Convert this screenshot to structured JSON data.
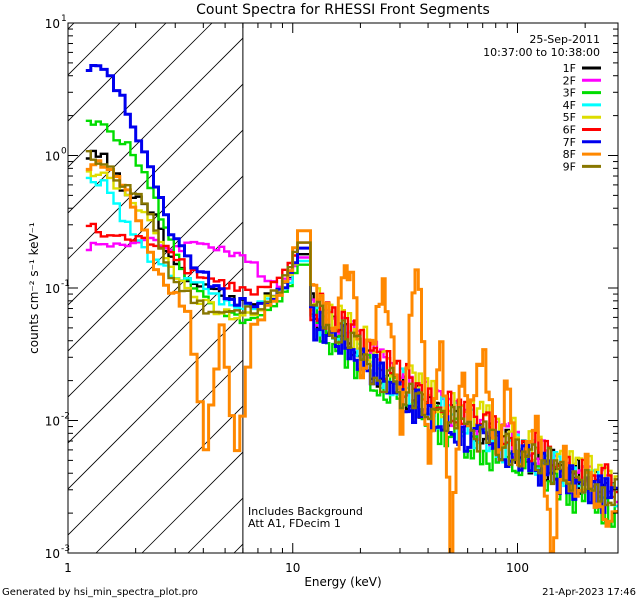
{
  "chart_data": {
    "type": "line",
    "title": "Count Spectra for RHESSI Front Segments",
    "xlabel": "Energy (keV)",
    "ylabel": "counts cm⁻² s⁻¹ keV⁻¹",
    "xscale": "log",
    "yscale": "log",
    "xlim": [
      1,
      280
    ],
    "ylim": [
      0.001,
      10
    ],
    "x_ticks": [
      {
        "value": 1,
        "label": "1"
      },
      {
        "value": 10,
        "label": "10"
      },
      {
        "value": 100,
        "label": "100"
      }
    ],
    "y_ticks": [
      {
        "value": 10,
        "base": "10",
        "exp": "1"
      },
      {
        "value": 1,
        "base": "10",
        "exp": "0"
      },
      {
        "value": 0.1,
        "base": "10",
        "exp": "-1"
      },
      {
        "value": 0.01,
        "base": "10",
        "exp": "-2"
      },
      {
        "value": 0.001,
        "base": "10",
        "exp": "-3"
      }
    ],
    "hatch_region": {
      "x_from": 1,
      "x_to": 6
    },
    "legend": {
      "position": "top-right",
      "date": "25-Sep-2011",
      "time_range": "10:37:00 to 10:38:00"
    },
    "annotations": [
      "Includes Background",
      "Att A1, FDecim 1"
    ],
    "series": [
      {
        "name": "1F",
        "color": "#000000",
        "low": [
          [
            1.2,
            1.0
          ],
          [
            1.4,
            1.0
          ],
          [
            1.7,
            0.55
          ],
          [
            2.0,
            0.45
          ],
          [
            2.4,
            0.35
          ],
          [
            2.8,
            0.16
          ],
          [
            3.3,
            0.12
          ],
          [
            4.0,
            0.1
          ],
          [
            4.7,
            0.09
          ],
          [
            5.5,
            0.08
          ],
          [
            6.5,
            0.075
          ],
          [
            7.5,
            0.09
          ],
          [
            8.5,
            0.1
          ],
          [
            9.5,
            0.13
          ],
          [
            10.5,
            0.18
          ]
        ],
        "high": [
          [
            12,
            0.07
          ],
          [
            15,
            0.05
          ],
          [
            20,
            0.03
          ],
          [
            30,
            0.018
          ],
          [
            40,
            0.012
          ],
          [
            60,
            0.009
          ],
          [
            80,
            0.007
          ],
          [
            120,
            0.005
          ],
          [
            160,
            0.004
          ],
          [
            200,
            0.0035
          ],
          [
            280,
            0.0028
          ]
        ]
      },
      {
        "name": "2F",
        "color": "#ff00ff",
        "low": [
          [
            1.2,
            0.21
          ],
          [
            1.4,
            0.21
          ],
          [
            1.7,
            0.22
          ],
          [
            2.0,
            0.22
          ],
          [
            2.4,
            0.22
          ],
          [
            2.8,
            0.2
          ],
          [
            3.3,
            0.21
          ],
          [
            4.0,
            0.22
          ],
          [
            4.7,
            0.2
          ],
          [
            5.5,
            0.17
          ],
          [
            6.5,
            0.15
          ],
          [
            7.5,
            0.12
          ],
          [
            8.5,
            0.11
          ],
          [
            9.5,
            0.12
          ],
          [
            10.5,
            0.17
          ]
        ],
        "high": [
          [
            12,
            0.07
          ],
          [
            15,
            0.055
          ],
          [
            20,
            0.035
          ],
          [
            30,
            0.02
          ],
          [
            40,
            0.014
          ],
          [
            60,
            0.01
          ],
          [
            80,
            0.008
          ],
          [
            120,
            0.006
          ],
          [
            160,
            0.0045
          ],
          [
            200,
            0.004
          ],
          [
            280,
            0.003
          ]
        ]
      },
      {
        "name": "3F",
        "color": "#00dd00",
        "low": [
          [
            1.2,
            1.7
          ],
          [
            1.4,
            1.7
          ],
          [
            1.7,
            1.3
          ],
          [
            2.0,
            0.9
          ],
          [
            2.4,
            0.45
          ],
          [
            2.8,
            0.22
          ],
          [
            3.3,
            0.12
          ],
          [
            4.0,
            0.08
          ],
          [
            4.7,
            0.06
          ],
          [
            5.5,
            0.06
          ],
          [
            6.5,
            0.055
          ],
          [
            7.5,
            0.065
          ],
          [
            8.5,
            0.075
          ],
          [
            9.5,
            0.1
          ],
          [
            10.5,
            0.15
          ]
        ],
        "high": [
          [
            12,
            0.06
          ],
          [
            15,
            0.04
          ],
          [
            20,
            0.025
          ],
          [
            30,
            0.015
          ],
          [
            40,
            0.01
          ],
          [
            60,
            0.007
          ],
          [
            80,
            0.005
          ],
          [
            120,
            0.004
          ],
          [
            160,
            0.003
          ],
          [
            200,
            0.0025
          ],
          [
            280,
            0.002
          ]
        ]
      },
      {
        "name": "4F",
        "color": "#00ffff",
        "low": [
          [
            1.2,
            0.65
          ],
          [
            1.4,
            0.65
          ],
          [
            1.7,
            0.35
          ],
          [
            2.0,
            0.22
          ],
          [
            2.4,
            0.15
          ],
          [
            2.8,
            0.13
          ],
          [
            3.3,
            0.11
          ],
          [
            4.0,
            0.1
          ],
          [
            4.7,
            0.08
          ],
          [
            5.5,
            0.07
          ],
          [
            6.5,
            0.075
          ],
          [
            7.5,
            0.085
          ],
          [
            8.5,
            0.09
          ],
          [
            9.5,
            0.12
          ],
          [
            10.5,
            0.16
          ]
        ],
        "high": [
          [
            12,
            0.065
          ],
          [
            15,
            0.05
          ],
          [
            20,
            0.03
          ],
          [
            30,
            0.018
          ],
          [
            40,
            0.012
          ],
          [
            60,
            0.009
          ],
          [
            80,
            0.007
          ],
          [
            120,
            0.005
          ],
          [
            160,
            0.004
          ],
          [
            200,
            0.0033
          ],
          [
            280,
            0.0027
          ]
        ]
      },
      {
        "name": "5F",
        "color": "#dddd00",
        "low": [
          [
            1.2,
            0.75
          ],
          [
            1.4,
            0.75
          ],
          [
            1.7,
            0.55
          ],
          [
            2.0,
            0.4
          ],
          [
            2.4,
            0.28
          ],
          [
            2.8,
            0.14
          ],
          [
            3.3,
            0.1
          ],
          [
            4.0,
            0.075
          ],
          [
            4.7,
            0.065
          ],
          [
            5.5,
            0.06
          ],
          [
            6.5,
            0.065
          ],
          [
            7.5,
            0.08
          ],
          [
            8.5,
            0.095
          ],
          [
            9.5,
            0.13
          ],
          [
            10.5,
            0.2
          ]
        ],
        "high": [
          [
            12,
            0.08
          ],
          [
            15,
            0.06
          ],
          [
            20,
            0.04
          ],
          [
            30,
            0.022
          ],
          [
            40,
            0.015
          ],
          [
            60,
            0.011
          ],
          [
            80,
            0.009
          ],
          [
            120,
            0.006
          ],
          [
            160,
            0.005
          ],
          [
            200,
            0.004
          ],
          [
            280,
            0.0032
          ]
        ]
      },
      {
        "name": "6F",
        "color": "#ff0000",
        "low": [
          [
            1.2,
            0.3
          ],
          [
            1.4,
            0.25
          ],
          [
            1.7,
            0.24
          ],
          [
            2.0,
            0.23
          ],
          [
            2.4,
            0.22
          ],
          [
            2.8,
            0.2
          ],
          [
            3.3,
            0.14
          ],
          [
            4.0,
            0.12
          ],
          [
            4.7,
            0.11
          ],
          [
            5.5,
            0.1
          ],
          [
            6.5,
            0.09
          ],
          [
            7.5,
            0.1
          ],
          [
            8.5,
            0.11
          ],
          [
            9.5,
            0.15
          ],
          [
            10.5,
            0.22
          ]
        ],
        "high": [
          [
            12,
            0.075
          ],
          [
            15,
            0.058
          ],
          [
            20,
            0.038
          ],
          [
            30,
            0.021
          ],
          [
            40,
            0.015
          ],
          [
            60,
            0.011
          ],
          [
            80,
            0.0085
          ],
          [
            120,
            0.006
          ],
          [
            160,
            0.0048
          ],
          [
            200,
            0.004
          ],
          [
            280,
            0.0033
          ]
        ]
      },
      {
        "name": "7F",
        "color": "#0000ee",
        "low": [
          [
            1.2,
            4.6
          ],
          [
            1.4,
            4.6
          ],
          [
            1.7,
            2.8
          ],
          [
            2.0,
            1.3
          ],
          [
            2.4,
            0.6
          ],
          [
            2.8,
            0.25
          ],
          [
            3.3,
            0.17
          ],
          [
            4.0,
            0.12
          ],
          [
            4.7,
            0.09
          ],
          [
            5.5,
            0.08
          ],
          [
            6.5,
            0.07
          ],
          [
            7.5,
            0.08
          ],
          [
            8.5,
            0.095
          ],
          [
            9.5,
            0.12
          ],
          [
            10.5,
            0.2
          ]
        ],
        "high": [
          [
            12,
            0.055
          ],
          [
            15,
            0.045
          ],
          [
            20,
            0.03
          ],
          [
            30,
            0.016
          ],
          [
            40,
            0.01
          ],
          [
            60,
            0.0075
          ],
          [
            80,
            0.006
          ],
          [
            120,
            0.0045
          ],
          [
            160,
            0.0035
          ],
          [
            200,
            0.003
          ],
          [
            280,
            0.0025
          ]
        ]
      },
      {
        "name": "8F",
        "color": "#ff8800",
        "low": [
          [
            1.2,
            0.85
          ],
          [
            1.4,
            0.85
          ],
          [
            1.7,
            0.6
          ],
          [
            2.0,
            0.35
          ],
          [
            2.4,
            0.14
          ],
          [
            2.8,
            0.1
          ],
          [
            3.3,
            0.07
          ],
          [
            4.0,
            0.006
          ],
          [
            4.7,
            0.055
          ],
          [
            5.5,
            0.0055
          ],
          [
            6.5,
            0.05
          ],
          [
            7.5,
            0.07
          ],
          [
            8.5,
            0.09
          ],
          [
            9.5,
            0.14
          ],
          [
            10.5,
            0.27
          ]
        ],
        "high": [
          [
            12,
            0.09
          ],
          [
            15,
            0.05
          ],
          [
            18,
            0.16
          ],
          [
            20,
            0.02
          ],
          [
            25,
            0.1
          ],
          [
            30,
            0.01
          ],
          [
            35,
            0.18
          ],
          [
            40,
            0.005
          ],
          [
            45,
            0.04
          ],
          [
            50,
            0.001
          ],
          [
            55,
            0.02
          ],
          [
            60,
            0.012
          ],
          [
            70,
            0.03
          ],
          [
            80,
            0.006
          ],
          [
            90,
            0.02
          ],
          [
            100,
            0.004
          ],
          [
            120,
            0.008
          ],
          [
            140,
            0.0012
          ],
          [
            160,
            0.005
          ],
          [
            180,
            0.003
          ],
          [
            200,
            0.0045
          ],
          [
            240,
            0.002
          ],
          [
            280,
            0.003
          ]
        ]
      },
      {
        "name": "9F",
        "color": "#887700",
        "low": [
          [
            1.2,
            1.0
          ],
          [
            1.4,
            0.9
          ],
          [
            1.7,
            0.6
          ],
          [
            2.0,
            0.5
          ],
          [
            2.4,
            0.27
          ],
          [
            2.8,
            0.12
          ],
          [
            3.3,
            0.09
          ],
          [
            4.0,
            0.07
          ],
          [
            4.7,
            0.065
          ],
          [
            5.5,
            0.065
          ],
          [
            6.5,
            0.07
          ],
          [
            7.5,
            0.08
          ],
          [
            8.5,
            0.1
          ],
          [
            9.5,
            0.14
          ],
          [
            10.5,
            0.22
          ]
        ],
        "high": [
          [
            12,
            0.07
          ],
          [
            15,
            0.05
          ],
          [
            20,
            0.03
          ],
          [
            30,
            0.017
          ],
          [
            40,
            0.012
          ],
          [
            60,
            0.0085
          ],
          [
            80,
            0.0065
          ],
          [
            120,
            0.005
          ],
          [
            160,
            0.004
          ],
          [
            200,
            0.0034
          ],
          [
            280,
            0.0028
          ]
        ]
      }
    ]
  },
  "footer": {
    "generated_by": "Generated by hsi_min_spectra_plot.pro",
    "date": "21-Apr-2023 17:46"
  }
}
